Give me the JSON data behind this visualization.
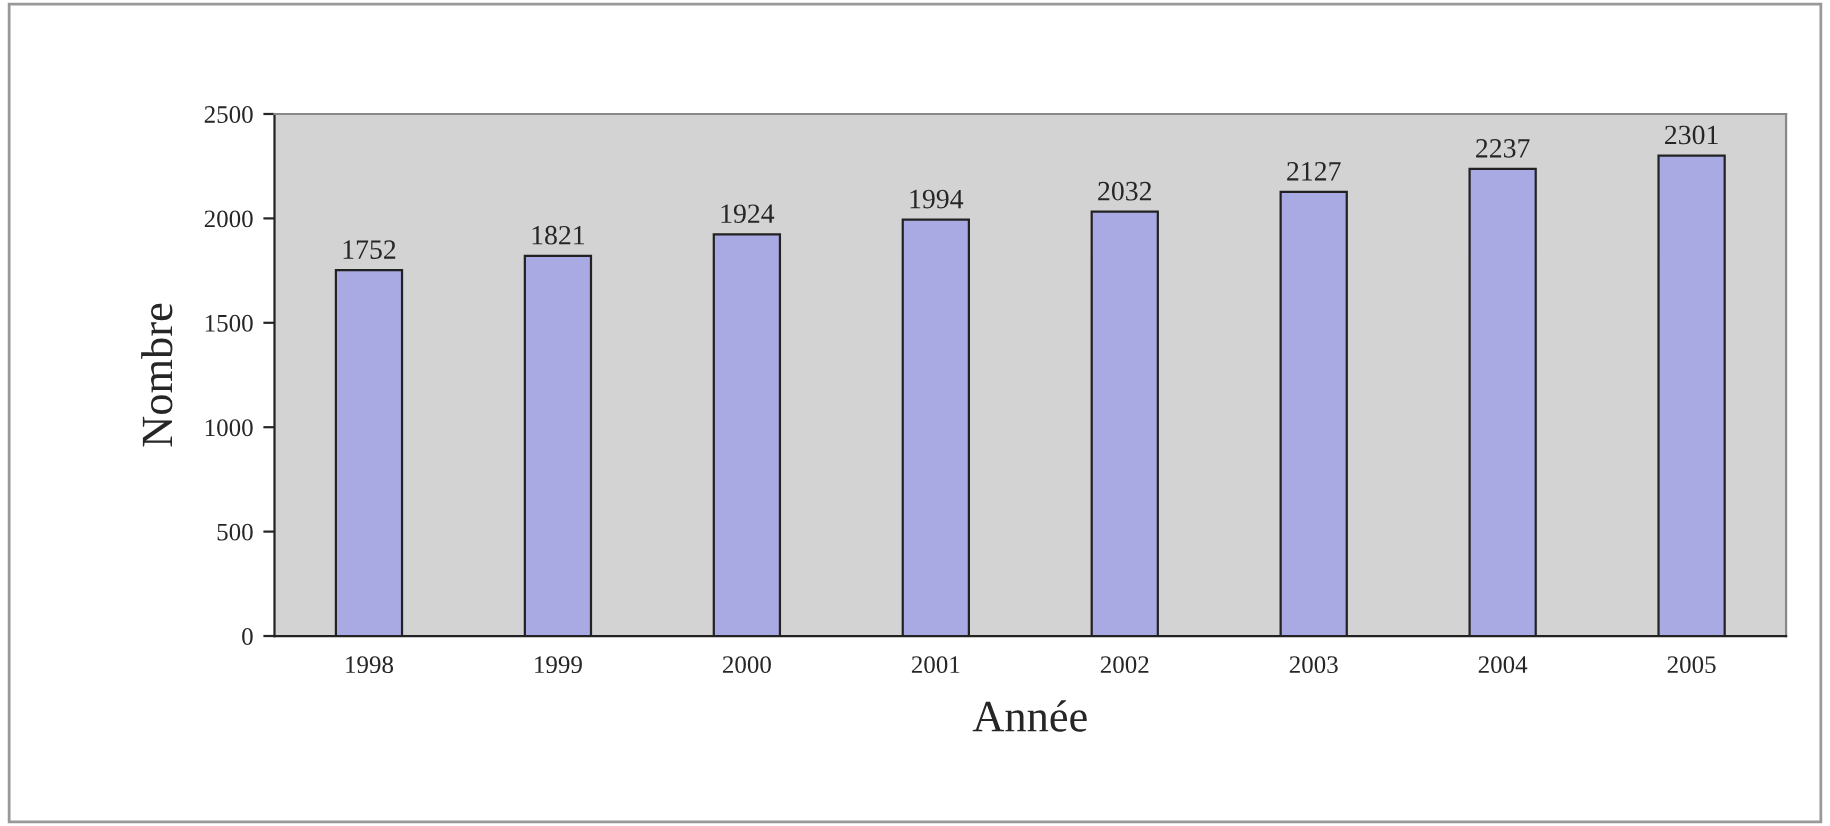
{
  "chart_data": {
    "type": "bar",
    "xlabel": "Année",
    "ylabel": "Nombre",
    "categories": [
      "1998",
      "1999",
      "2000",
      "2001",
      "2002",
      "2003",
      "2004",
      "2005"
    ],
    "values": [
      1752,
      1821,
      1924,
      1994,
      2032,
      2127,
      2237,
      2301
    ],
    "color": "#a9a9e3",
    "ylim": [
      0,
      2500
    ],
    "yticks": [
      0,
      500,
      1000,
      1500,
      2000,
      2500
    ],
    "data_labels": true,
    "grid": false,
    "legend": false
  }
}
